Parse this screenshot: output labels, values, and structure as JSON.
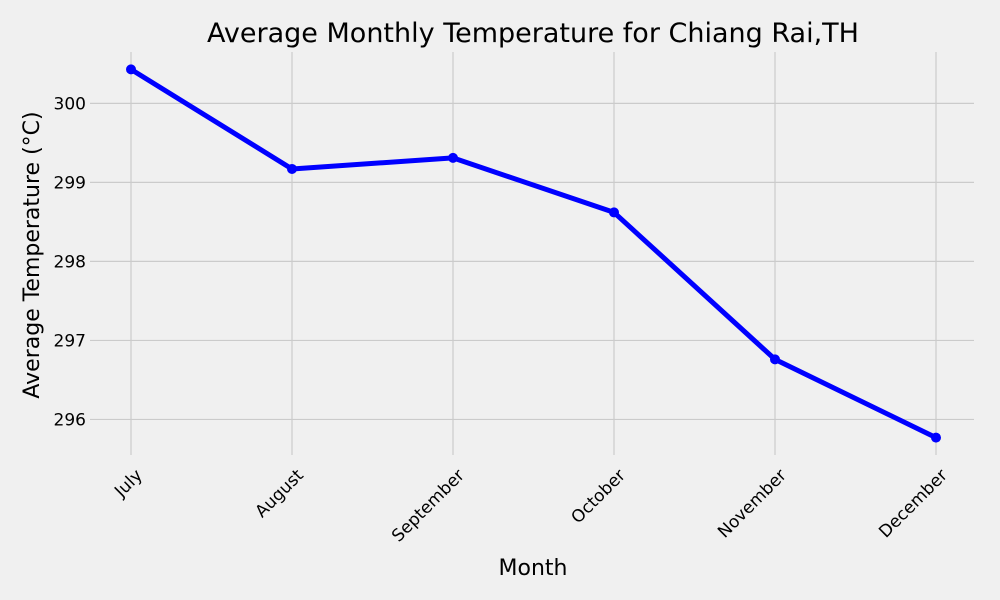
{
  "chart_data": {
    "type": "line",
    "title": "Average Monthly Temperature for Chiang Rai,TH",
    "xlabel": "Month",
    "ylabel": "Average Temperature (°C)",
    "categories": [
      "July",
      "August",
      "September",
      "October",
      "November",
      "December"
    ],
    "series": [
      {
        "values": [
          300.43,
          299.17,
          299.31,
          298.62,
          296.76,
          295.77
        ],
        "color": "#0000ff"
      }
    ],
    "ylim": [
      295.55,
      300.65
    ],
    "yticks": [
      296,
      297,
      298,
      299,
      300
    ],
    "grid": true,
    "background": "#f0f0f0",
    "legend": "none"
  }
}
